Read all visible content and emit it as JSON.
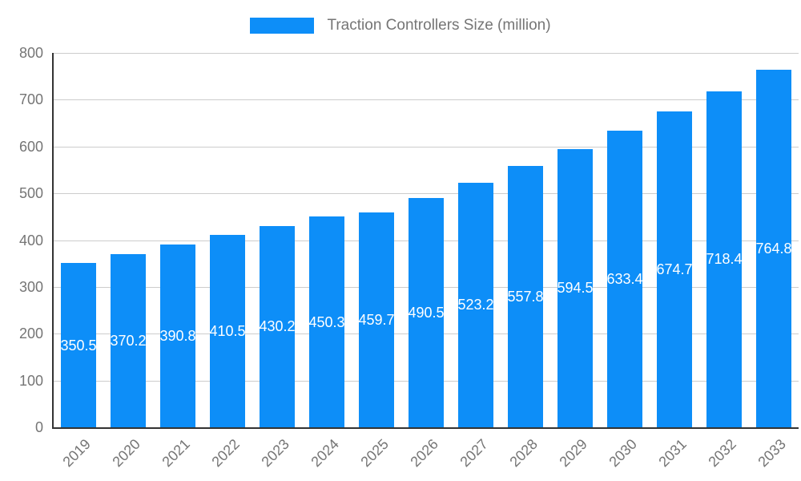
{
  "legend": {
    "swatch_color": "#0d8ef8",
    "label": "Traction Controllers Size (million)"
  },
  "chart_data": {
    "type": "bar",
    "title": "Traction Controllers Size (million)",
    "categories": [
      "2019",
      "2020",
      "2021",
      "2022",
      "2023",
      "2024",
      "2025",
      "2026",
      "2027",
      "2028",
      "2029",
      "2030",
      "2031",
      "2032",
      "2033"
    ],
    "series": [
      {
        "name": "Traction Controllers Size (million)",
        "values": [
          350.5,
          370.2,
          390.8,
          410.5,
          430.2,
          450.3,
          459.7,
          490.5,
          523.2,
          557.8,
          594.5,
          633.4,
          674.7,
          718.4,
          764.8
        ]
      }
    ],
    "xlabel": "",
    "ylabel": "",
    "ylim": [
      0,
      800
    ],
    "ytick_step": 100,
    "yticks": [
      0,
      100,
      200,
      300,
      400,
      500,
      600,
      700,
      800
    ],
    "grid": true,
    "legend_position": "top",
    "bar_color": "#0d8ef8",
    "value_label_color": "#ffffff",
    "axis_text_color": "#757575",
    "gridline_color": "#cccccc",
    "axis_line_color": "#333333"
  }
}
